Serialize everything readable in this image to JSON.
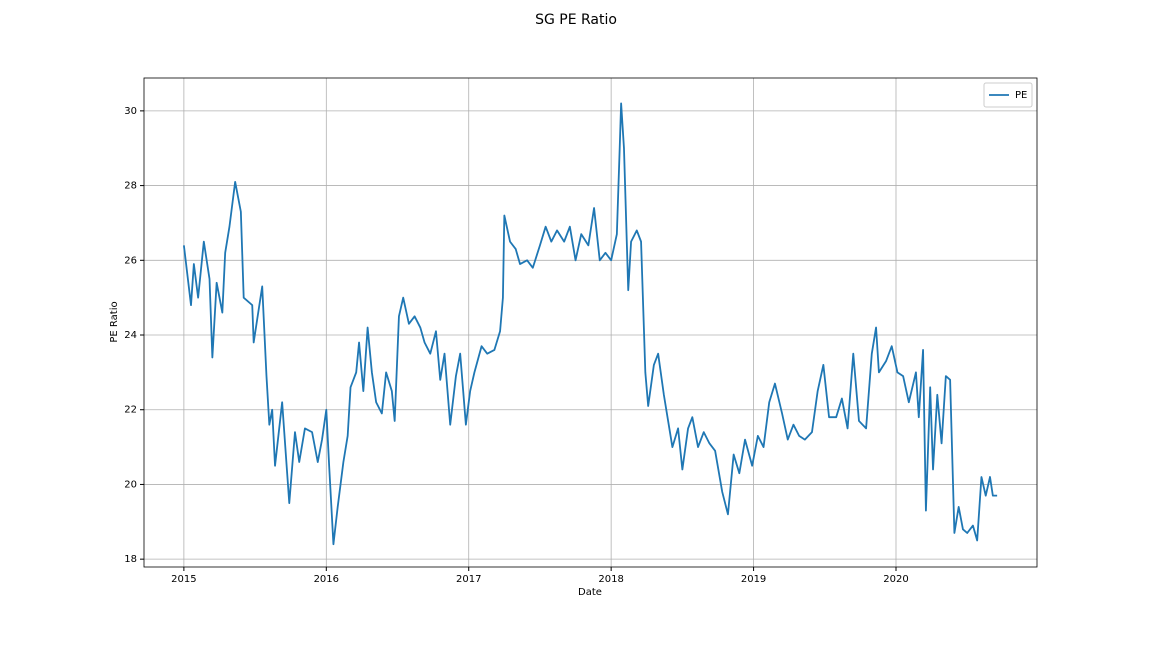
{
  "chart_data": {
    "type": "line",
    "title": "SG PE Ratio",
    "x_label": "Date",
    "y_label": "PE Ratio",
    "x": [
      2015.0,
      2015.05,
      2015.07,
      2015.1,
      2015.14,
      2015.18,
      2015.2,
      2015.23,
      2015.27,
      2015.29,
      2015.32,
      2015.36,
      2015.4,
      2015.42,
      2015.48,
      2015.49,
      2015.53,
      2015.55,
      2015.58,
      2015.6,
      2015.62,
      2015.64,
      2015.69,
      2015.74,
      2015.78,
      2015.81,
      2015.85,
      2015.9,
      2015.94,
      2015.97,
      2016.0,
      2016.02,
      2016.05,
      2016.08,
      2016.12,
      2016.15,
      2016.17,
      2016.21,
      2016.23,
      2016.26,
      2016.29,
      2016.32,
      2016.35,
      2016.39,
      2016.42,
      2016.46,
      2016.48,
      2016.51,
      2016.54,
      2016.58,
      2016.62,
      2016.66,
      2016.69,
      2016.73,
      2016.77,
      2016.8,
      2016.83,
      2016.87,
      2016.91,
      2016.94,
      2016.98,
      2017.01,
      2017.04,
      2017.09,
      2017.13,
      2017.18,
      2017.22,
      2017.24,
      2017.25,
      2017.29,
      2017.33,
      2017.36,
      2017.41,
      2017.45,
      2017.5,
      2017.54,
      2017.58,
      2017.62,
      2017.67,
      2017.71,
      2017.75,
      2017.79,
      2017.84,
      2017.88,
      2017.92,
      2017.96,
      2018.0,
      2018.04,
      2018.06,
      2018.07,
      2018.09,
      2018.12,
      2018.14,
      2018.18,
      2018.21,
      2018.24,
      2018.26,
      2018.3,
      2018.33,
      2018.37,
      2018.4,
      2018.43,
      2018.47,
      2018.5,
      2018.54,
      2018.57,
      2018.61,
      2018.65,
      2018.69,
      2018.73,
      2018.78,
      2018.82,
      2018.86,
      2018.9,
      2018.94,
      2018.99,
      2019.03,
      2019.07,
      2019.11,
      2019.15,
      2019.2,
      2019.24,
      2019.28,
      2019.32,
      2019.36,
      2019.41,
      2019.45,
      2019.49,
      2019.53,
      2019.58,
      2019.62,
      2019.66,
      2019.7,
      2019.74,
      2019.79,
      2019.83,
      2019.86,
      2019.88,
      2019.93,
      2019.97,
      2020.01,
      2020.05,
      2020.09,
      2020.14,
      2020.16,
      2020.19,
      2020.21,
      2020.24,
      2020.26,
      2020.29,
      2020.32,
      2020.35,
      2020.38,
      2020.41,
      2020.44,
      2020.47,
      2020.5,
      2020.54,
      2020.57,
      2020.6,
      2020.63,
      2020.66,
      2020.68,
      2020.71
    ],
    "series": [
      {
        "name": "PE",
        "color": "#1f77b4",
        "values": [
          26.4,
          24.8,
          25.9,
          25.0,
          26.5,
          25.5,
          23.4,
          25.4,
          24.6,
          26.2,
          26.9,
          28.1,
          27.3,
          25.0,
          24.8,
          23.8,
          24.8,
          25.3,
          22.9,
          21.6,
          22.0,
          20.5,
          22.2,
          19.5,
          21.4,
          20.6,
          21.5,
          21.4,
          20.6,
          21.2,
          22.0,
          20.5,
          18.4,
          19.4,
          20.6,
          21.3,
          22.6,
          23.0,
          23.8,
          22.5,
          24.2,
          23.0,
          22.2,
          21.9,
          23.0,
          22.5,
          21.7,
          24.5,
          25.0,
          24.3,
          24.5,
          24.2,
          23.8,
          23.5,
          24.1,
          22.8,
          23.5,
          21.6,
          22.9,
          23.5,
          21.6,
          22.5,
          23.0,
          23.7,
          23.5,
          23.6,
          24.1,
          25.0,
          27.2,
          26.5,
          26.3,
          25.9,
          26.0,
          25.8,
          26.4,
          26.9,
          26.5,
          26.8,
          26.5,
          26.9,
          26.0,
          26.7,
          26.4,
          27.4,
          26.0,
          26.2,
          26.0,
          26.7,
          29.0,
          30.2,
          29.0,
          25.2,
          26.5,
          26.8,
          26.5,
          23.0,
          22.1,
          23.2,
          23.5,
          22.4,
          21.7,
          21.0,
          21.5,
          20.4,
          21.5,
          21.8,
          21.0,
          21.4,
          21.1,
          20.9,
          19.8,
          19.2,
          20.8,
          20.3,
          21.2,
          20.5,
          21.3,
          21.0,
          22.2,
          22.7,
          21.9,
          21.2,
          21.6,
          21.3,
          21.2,
          21.4,
          22.5,
          23.2,
          21.8,
          21.8,
          22.3,
          21.5,
          23.5,
          21.7,
          21.5,
          23.5,
          24.2,
          23.0,
          23.3,
          23.7,
          23.0,
          22.9,
          22.2,
          23.0,
          21.8,
          23.6,
          19.3,
          22.6,
          20.4,
          22.4,
          21.1,
          22.9,
          22.8,
          18.7,
          19.4,
          18.8,
          18.7,
          18.9,
          18.5,
          20.2,
          19.7,
          20.2,
          19.7,
          19.7
        ]
      }
    ],
    "xlim": [
      2014.72,
      2020.99
    ],
    "xticks": [
      2015,
      2016,
      2017,
      2018,
      2019,
      2020
    ],
    "ylim": [
      17.79,
      30.88
    ],
    "yticks": [
      18,
      20,
      22,
      24,
      26,
      28,
      30
    ],
    "grid": true,
    "legend": "upper right"
  }
}
